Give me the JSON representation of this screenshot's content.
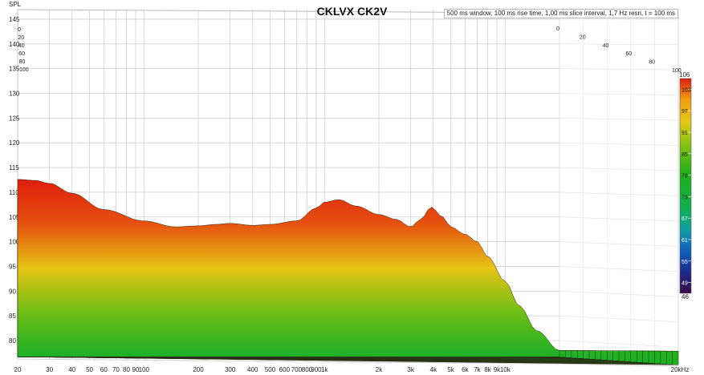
{
  "chart_data": {
    "type": "area",
    "title": "CKLVX CK2V",
    "subtitle": "500 ms window, 100 ms rise time, 1,00 ms slice interval, 1,7 Hz resn, t = 100 ms",
    "ylabel": "SPL",
    "ylim": [
      75,
      146
    ],
    "y_ticks": [
      80,
      85,
      90,
      95,
      100,
      105,
      110,
      115,
      120,
      125,
      130,
      135,
      140,
      145
    ],
    "x_scale": "log",
    "xlim": [
      20,
      20000
    ],
    "x_ticks": [
      {
        "v": 20,
        "label": "20"
      },
      {
        "v": 30,
        "label": "30"
      },
      {
        "v": 40,
        "label": "40"
      },
      {
        "v": 50,
        "label": "50"
      },
      {
        "v": 60,
        "label": "60"
      },
      {
        "v": 70,
        "label": "70"
      },
      {
        "v": 80,
        "label": "80"
      },
      {
        "v": 90,
        "label": "90"
      },
      {
        "v": 100,
        "label": "100"
      },
      {
        "v": 200,
        "label": "200"
      },
      {
        "v": 300,
        "label": "300"
      },
      {
        "v": 400,
        "label": "400"
      },
      {
        "v": 500,
        "label": "500"
      },
      {
        "v": 600,
        "label": "600"
      },
      {
        "v": 700,
        "label": "700"
      },
      {
        "v": 800,
        "label": "800"
      },
      {
        "v": 900,
        "label": "900"
      },
      {
        "v": 1000,
        "label": "1k"
      },
      {
        "v": 2000,
        "label": "2k"
      },
      {
        "v": 3000,
        "label": "3k"
      },
      {
        "v": 4000,
        "label": "4k"
      },
      {
        "v": 5000,
        "label": "5k"
      },
      {
        "v": 6000,
        "label": "6k"
      },
      {
        "v": 7000,
        "label": "7k"
      },
      {
        "v": 8000,
        "label": "8k"
      },
      {
        "v": 9000,
        "label": "9k"
      },
      {
        "v": 10000,
        "label": "10k"
      },
      {
        "v": 20000,
        "label": "20kHz"
      }
    ],
    "time_axis": {
      "unit": "ms",
      "ticks": [
        "0",
        "20",
        "40",
        "60",
        "80",
        "100"
      ],
      "left_labels": [
        "0",
        "20",
        "40",
        "60",
        "80",
        "100"
      ]
    },
    "slices": 100,
    "first_slice_response": {
      "freq": [
        20,
        25,
        30,
        40,
        60,
        100,
        150,
        200,
        250,
        300,
        400,
        500,
        700,
        900,
        1000,
        1200,
        1500,
        2000,
        2500,
        3000,
        3400,
        3900,
        4500,
        5000,
        6000,
        7000,
        8000,
        10000,
        12000,
        15000,
        20000
      ],
      "spl": [
        112.6,
        112.4,
        111.8,
        109.8,
        106.5,
        104.2,
        103.0,
        103.2,
        103.5,
        103.7,
        103.3,
        103.5,
        104.2,
        106.8,
        108.0,
        108.5,
        107.2,
        105.5,
        104.5,
        103.0,
        104.5,
        107.0,
        105.0,
        103.0,
        101.5,
        100.0,
        97.0,
        92.0,
        87.0,
        82.0,
        78.0
      ]
    },
    "colorbar": {
      "max_label": "106",
      "min_label": "46",
      "ticks": [
        "103",
        "97",
        "91",
        "85",
        "79",
        "73",
        "67",
        "61",
        "55",
        "49"
      ],
      "range": [
        46,
        106
      ]
    }
  }
}
